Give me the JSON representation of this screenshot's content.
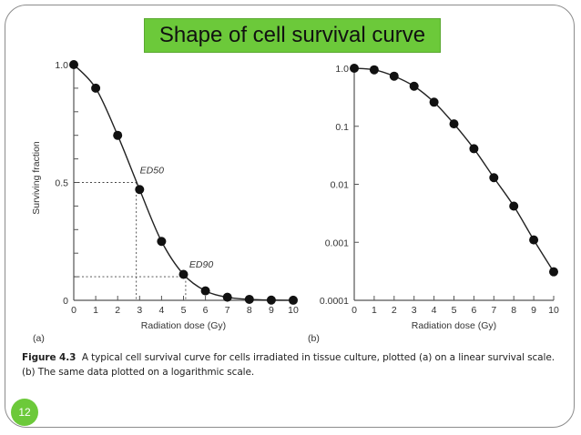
{
  "slide": {
    "title": "Shape of cell survival curve",
    "slide_number": "12",
    "accent_color": "#6cc93a"
  },
  "caption": {
    "figure_label": "Figure 4.3",
    "line1": "A typical cell survival curve for cells irradiated in tissue culture, plotted (a) on a linear survival scale.",
    "line2": "(b) The same data plotted on a logarithmic scale."
  },
  "chart_data": [
    {
      "panel": "(a)",
      "type": "line",
      "title": "",
      "xlabel": "Radiation dose (Gy)",
      "ylabel": "Surviving fraction",
      "yscale": "linear",
      "xlim": [
        0,
        10
      ],
      "ylim": [
        0,
        1.0
      ],
      "x_ticks": [
        "0",
        "1",
        "2",
        "3",
        "4",
        "5",
        "6",
        "7",
        "8",
        "9",
        "10"
      ],
      "y_ticks": [
        "0",
        "0.5",
        "1.0"
      ],
      "x": [
        0,
        1,
        2,
        3,
        4,
        5,
        6,
        7,
        8,
        9,
        10
      ],
      "series": [
        {
          "name": "Surviving fraction",
          "values": [
            1.0,
            0.9,
            0.7,
            0.47,
            0.25,
            0.11,
            0.04,
            0.013,
            0.004,
            0.001,
            0.0003
          ]
        }
      ],
      "annotations": [
        {
          "text": "ED50",
          "x": 2.85,
          "y": 0.5
        },
        {
          "text": "ED90",
          "x": 5.1,
          "y": 0.1
        }
      ],
      "grid": false,
      "panel_label": "(a)"
    },
    {
      "panel": "(b)",
      "type": "line",
      "title": "",
      "xlabel": "Radiation dose (Gy)",
      "ylabel": "",
      "yscale": "log",
      "xlim": [
        0,
        10
      ],
      "ylim": [
        0.0001,
        1.0
      ],
      "x_ticks": [
        "0",
        "1",
        "2",
        "3",
        "4",
        "5",
        "6",
        "7",
        "8",
        "9",
        "10"
      ],
      "y_ticks": [
        "0.0001",
        "0.001",
        "0.01",
        "0.1",
        "1.0"
      ],
      "x": [
        0,
        1,
        2,
        3,
        4,
        5,
        6,
        7,
        8,
        9,
        10
      ],
      "series": [
        {
          "name": "Surviving fraction",
          "values": [
            1.0,
            0.94,
            0.73,
            0.49,
            0.26,
            0.11,
            0.041,
            0.013,
            0.0042,
            0.0011,
            0.00031
          ]
        }
      ],
      "grid": false,
      "panel_label": "(b)"
    }
  ]
}
